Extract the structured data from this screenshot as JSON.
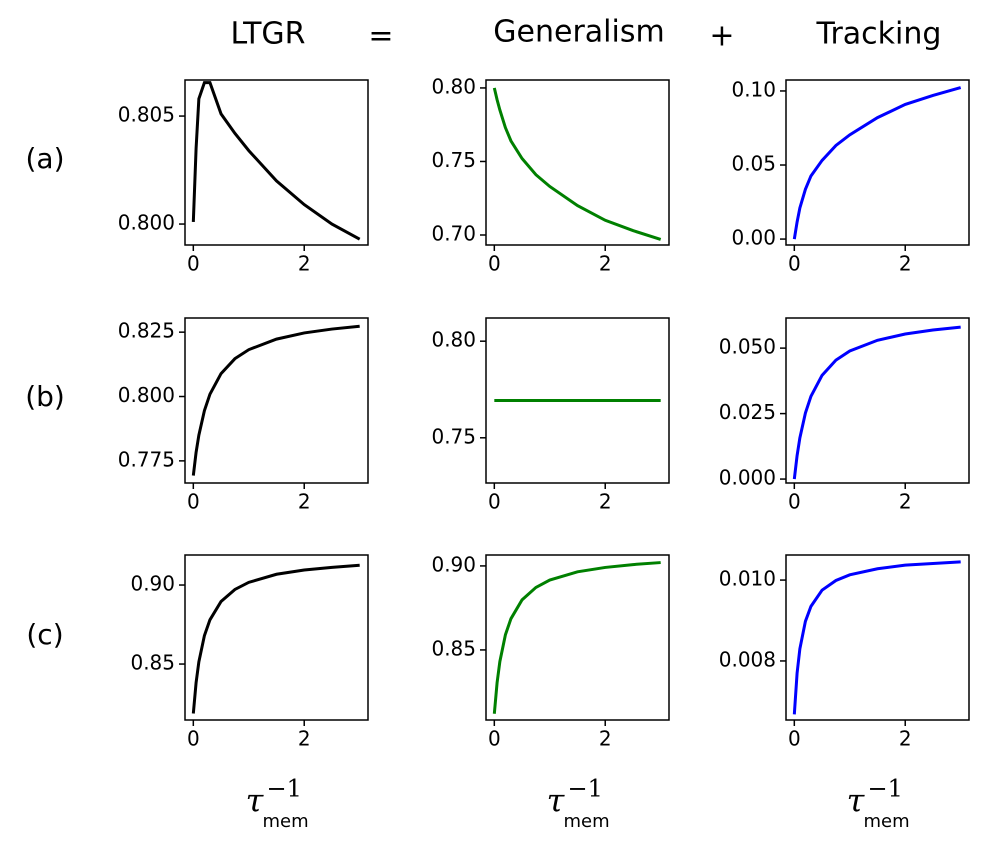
{
  "header": {
    "columns": [
      "LTGR",
      "Generalism",
      "Tracking"
    ],
    "operators": [
      "=",
      "+"
    ]
  },
  "row_labels": [
    "(a)",
    "(b)",
    "(c)"
  ],
  "chart_data": [
    {
      "type": "line",
      "x": [
        0,
        0.05,
        0.1,
        0.2,
        0.3,
        0.5,
        0.75,
        1,
        1.5,
        2,
        2.5,
        3
      ],
      "values": [
        0.8001,
        0.8035,
        0.8058,
        0.80655,
        0.80655,
        0.8051,
        0.8042,
        0.8034,
        0.802,
        0.8009,
        0.8,
        0.7993
      ],
      "color": "#000000",
      "xlim": [
        -0.15,
        3.15
      ],
      "xticks": [
        0,
        2
      ],
      "ylim": [
        0.79903,
        0.80667
      ],
      "yticks": [
        {
          "value": 0.8,
          "label": "0.800"
        },
        0.805
      ]
    },
    {
      "type": "line",
      "x": [
        0,
        0.05,
        0.1,
        0.2,
        0.3,
        0.5,
        0.75,
        1,
        1.5,
        2,
        2.5,
        3
      ],
      "values": [
        0.8,
        0.792,
        0.785,
        0.773,
        0.764,
        0.752,
        0.741,
        0.733,
        0.72,
        0.71,
        0.703,
        0.697
      ],
      "color": "#008000",
      "xlim": [
        -0.15,
        3.15
      ],
      "xticks": [
        0,
        2
      ],
      "ylim": [
        0.6932,
        0.8054
      ],
      "yticks": [
        {
          "value": 0.7,
          "label": "0.70"
        },
        0.75,
        {
          "value": 0.8,
          "label": "0.80"
        }
      ]
    },
    {
      "type": "line",
      "x": [
        0,
        0.05,
        0.1,
        0.2,
        0.3,
        0.5,
        0.75,
        1,
        1.5,
        2,
        2.5,
        3
      ],
      "values": [
        0,
        0.0115,
        0.021,
        0.0336,
        0.0426,
        0.0531,
        0.0632,
        0.0704,
        0.082,
        0.0909,
        0.097,
        0.1023
      ],
      "color": "#0000ff",
      "xlim": [
        -0.15,
        3.15
      ],
      "xticks": [
        0,
        2
      ],
      "ylim": [
        -0.004,
        0.1074
      ],
      "yticks": [
        {
          "value": 0,
          "label": "0.00"
        },
        0.05,
        {
          "value": 0.1,
          "label": "0.10"
        }
      ]
    },
    {
      "type": "line",
      "x": [
        0,
        0.05,
        0.1,
        0.2,
        0.3,
        0.5,
        0.75,
        1,
        1.5,
        2,
        2.5,
        3
      ],
      "values": [
        0.7693,
        0.7783,
        0.785,
        0.7945,
        0.8009,
        0.8089,
        0.8147,
        0.8182,
        0.8223,
        0.8247,
        0.8262,
        0.8273
      ],
      "color": "#000000",
      "xlim": [
        -0.15,
        3.15
      ],
      "xticks": [
        0,
        2
      ],
      "ylim": [
        0.7664,
        0.8305
      ],
      "yticks": [
        0.775,
        {
          "value": 0.8,
          "label": "0.800"
        },
        0.825
      ]
    },
    {
      "type": "line",
      "x": [
        0,
        0.05,
        0.1,
        0.2,
        0.3,
        0.5,
        0.75,
        1,
        1.5,
        2,
        2.5,
        3
      ],
      "values": [
        0.7693,
        0.7693,
        0.7693,
        0.7693,
        0.7693,
        0.7693,
        0.7693,
        0.7693,
        0.7693,
        0.7693,
        0.7693,
        0.7693
      ],
      "color": "#008000",
      "xlim": [
        -0.15,
        3.15
      ],
      "xticks": [
        0,
        2
      ],
      "ylim": [
        0.7266,
        0.812
      ],
      "yticks": [
        0.75,
        {
          "value": 0.8,
          "label": "0.80"
        }
      ]
    },
    {
      "type": "line",
      "x": [
        0,
        0.05,
        0.1,
        0.2,
        0.3,
        0.5,
        0.75,
        1,
        1.5,
        2,
        2.5,
        3
      ],
      "values": [
        0,
        0.00895,
        0.0157,
        0.0252,
        0.0316,
        0.0396,
        0.0454,
        0.0489,
        0.053,
        0.0554,
        0.0569,
        0.058
      ],
      "color": "#0000ff",
      "xlim": [
        -0.15,
        3.15
      ],
      "xticks": [
        0,
        2
      ],
      "ylim": [
        -0.0015,
        0.0615
      ],
      "yticks": [
        {
          "value": 0,
          "label": "0.000"
        },
        0.025,
        {
          "value": 0.05,
          "label": "0.050"
        }
      ]
    },
    {
      "type": "line",
      "x": [
        0,
        0.05,
        0.1,
        0.2,
        0.3,
        0.5,
        0.75,
        1,
        1.5,
        2,
        2.5,
        3
      ],
      "values": [
        0.8187,
        0.8382,
        0.8514,
        0.868,
        0.878,
        0.8896,
        0.8972,
        0.9017,
        0.9068,
        0.9095,
        0.9112,
        0.9125
      ],
      "color": "#000000",
      "xlim": [
        -0.15,
        3.15
      ],
      "xticks": [
        0,
        2
      ],
      "ylim": [
        0.8146,
        0.919
      ],
      "yticks": [
        0.85,
        {
          "value": 0.9,
          "label": "0.90"
        }
      ],
      "xlabel": {
        "symbol": "τ",
        "superscript": "−1",
        "subscript": "mem"
      }
    },
    {
      "type": "line",
      "x": [
        0,
        0.05,
        0.1,
        0.2,
        0.3,
        0.5,
        0.75,
        1,
        1.5,
        2,
        2.5,
        3
      ],
      "values": [
        0.812,
        0.8305,
        0.8431,
        0.859,
        0.8686,
        0.8798,
        0.8872,
        0.8916,
        0.8965,
        0.8991,
        0.9008,
        0.902
      ],
      "color": "#008000",
      "xlim": [
        -0.15,
        3.15
      ],
      "xticks": [
        0,
        2
      ],
      "ylim": [
        0.8083,
        0.9065
      ],
      "yticks": [
        0.85,
        {
          "value": 0.9,
          "label": "0.90"
        }
      ],
      "xlabel": {
        "symbol": "τ",
        "superscript": "−1",
        "subscript": "mem"
      }
    },
    {
      "type": "line",
      "x": [
        0,
        0.05,
        0.1,
        0.2,
        0.3,
        0.5,
        0.75,
        1,
        1.5,
        2,
        2.5,
        3
      ],
      "values": [
        0.00668,
        0.0077,
        0.0083,
        0.00898,
        0.00935,
        0.00975,
        0.00999,
        0.01013,
        0.01028,
        0.01037,
        0.01041,
        0.01045
      ],
      "color": "#0000ff",
      "xlim": [
        -0.15,
        3.15
      ],
      "xticks": [
        0,
        2
      ],
      "ylim": [
        0.00654,
        0.01062
      ],
      "yticks": [
        0.008,
        {
          "value": 0.01,
          "label": "0.010"
        }
      ],
      "xlabel": {
        "symbol": "τ",
        "superscript": "−1",
        "subscript": "mem"
      }
    }
  ]
}
